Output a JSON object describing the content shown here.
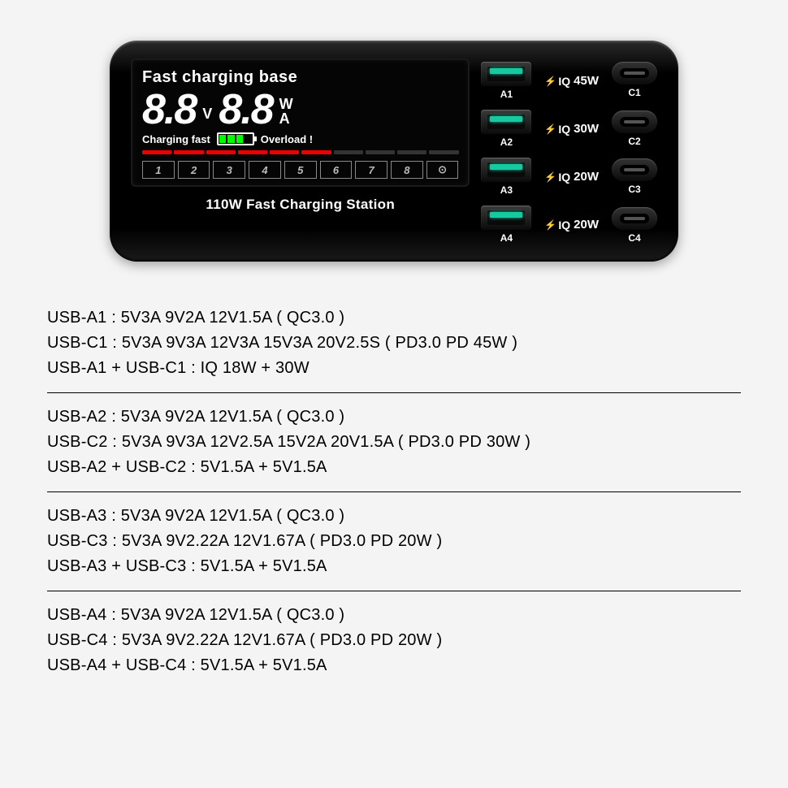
{
  "device": {
    "lcd": {
      "title": "Fast charging base",
      "digits_left": "8.8",
      "v_label": "V",
      "digits_right": "8.8",
      "w_label": "W",
      "a_label": "A",
      "charging_text": "Charging fast",
      "overload_text": "Overload !",
      "battery_cells_on": 3,
      "battery_cells_total": 4,
      "redbars_on": 6,
      "redbars_total": 10,
      "indicators": [
        "1",
        "2",
        "3",
        "4",
        "5",
        "6",
        "7",
        "8",
        "⊙"
      ]
    },
    "station_label": "110W Fast Charging Station",
    "usb_a_ports": [
      {
        "label": "A1"
      },
      {
        "label": "A2"
      },
      {
        "label": "A3"
      },
      {
        "label": "A4"
      }
    ],
    "iq_labels": [
      {
        "text": "IQ",
        "watt": "45W"
      },
      {
        "text": "IQ",
        "watt": "30W"
      },
      {
        "text": "IQ",
        "watt": "20W"
      },
      {
        "text": "IQ",
        "watt": "20W"
      }
    ],
    "usb_c_ports": [
      {
        "label": "C1"
      },
      {
        "label": "C2"
      },
      {
        "label": "C3"
      },
      {
        "label": "C4"
      }
    ]
  },
  "specs": [
    [
      "USB-A1 : 5V3A 9V2A 12V1.5A ( QC3.0 )",
      "USB-C1 : 5V3A 9V3A 12V3A 15V3A 20V2.5S ( PD3.0 PD 45W )",
      "USB-A1 + USB-C1 : IQ 18W + 30W"
    ],
    [
      "USB-A2 : 5V3A 9V2A 12V1.5A ( QC3.0 )",
      "USB-C2 : 5V3A 9V3A 12V2.5A 15V2A 20V1.5A ( PD3.0 PD 30W )",
      "USB-A2 + USB-C2 : 5V1.5A + 5V1.5A"
    ],
    [
      "USB-A3 : 5V3A 9V2A 12V1.5A ( QC3.0 )",
      "USB-C3 : 5V3A 9V2.22A 12V1.67A ( PD3.0 PD 20W )",
      "USB-A3 + USB-C3 : 5V1.5A + 5V1.5A"
    ],
    [
      "USB-A4 : 5V3A 9V2A 12V1.5A ( QC3.0 )",
      "USB-C4 : 5V3A 9V2.22A 12V1.67A ( PD3.0 PD 20W )",
      "USB-A4 + USB-C4 : 5V1.5A + 5V1.5A"
    ]
  ]
}
